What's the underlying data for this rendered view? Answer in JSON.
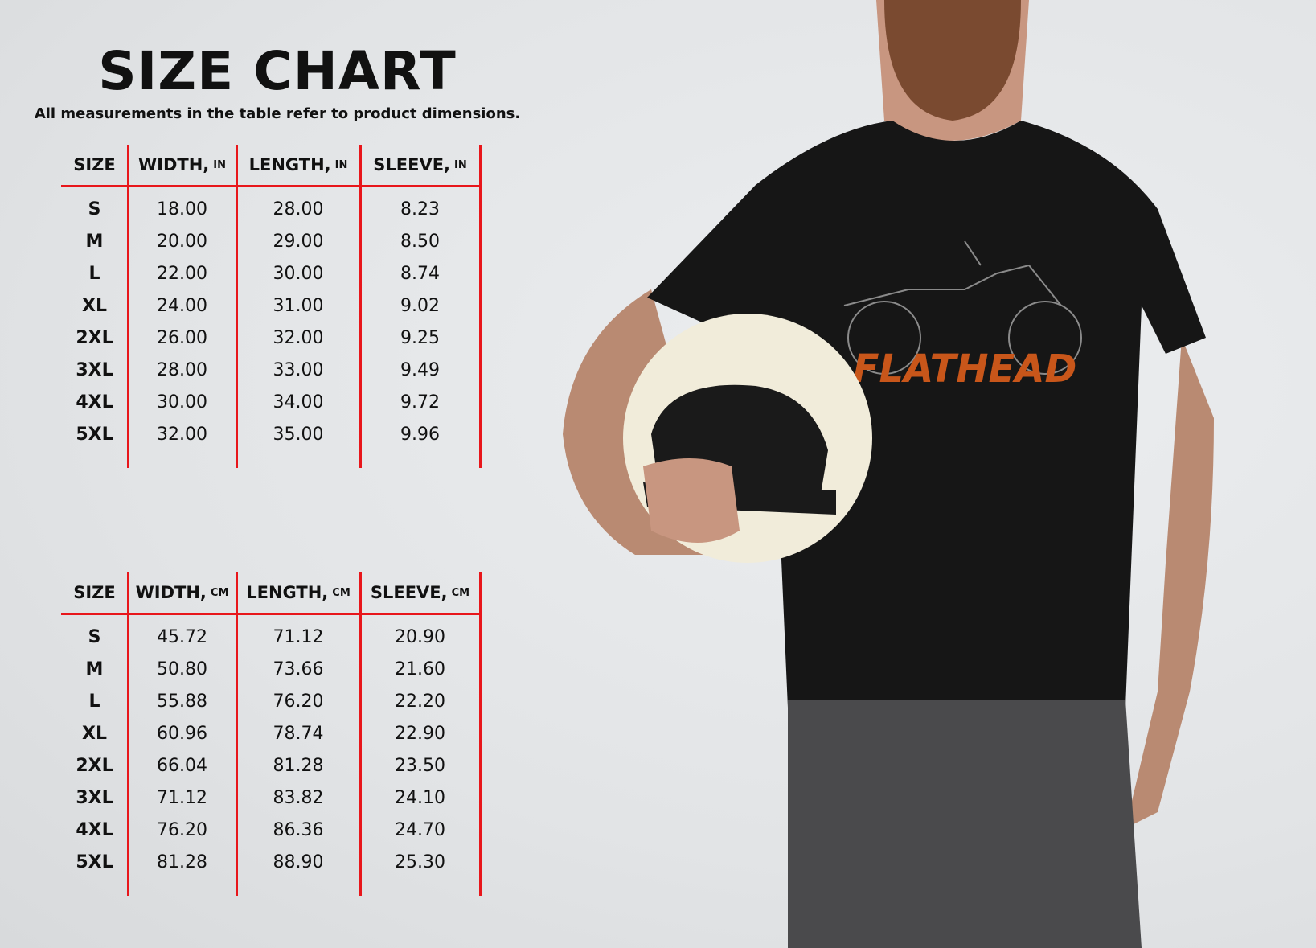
{
  "title": "SIZE CHART",
  "subtitle": "All measurements in the table refer to product dimensions.",
  "tables": [
    {
      "headers": [
        {
          "label": "SIZE",
          "unit": ""
        },
        {
          "label": "WIDTH,",
          "unit": "IN"
        },
        {
          "label": "LENGTH,",
          "unit": "IN"
        },
        {
          "label": "SLEEVE,",
          "unit": "IN"
        }
      ],
      "rows": [
        [
          "S",
          "18.00",
          "28.00",
          "8.23"
        ],
        [
          "M",
          "20.00",
          "29.00",
          "8.50"
        ],
        [
          "L",
          "22.00",
          "30.00",
          "8.74"
        ],
        [
          "XL",
          "24.00",
          "31.00",
          "9.02"
        ],
        [
          "2XL",
          "26.00",
          "32.00",
          "9.25"
        ],
        [
          "3XL",
          "28.00",
          "33.00",
          "9.49"
        ],
        [
          "4XL",
          "30.00",
          "34.00",
          "9.72"
        ],
        [
          "5XL",
          "32.00",
          "35.00",
          "9.96"
        ]
      ]
    },
    {
      "headers": [
        {
          "label": "SIZE",
          "unit": ""
        },
        {
          "label": "WIDTH,",
          "unit": "CM"
        },
        {
          "label": "LENGTH,",
          "unit": "CM"
        },
        {
          "label": "SLEEVE,",
          "unit": "CM"
        }
      ],
      "rows": [
        [
          "S",
          "45.72",
          "71.12",
          "20.90"
        ],
        [
          "M",
          "50.80",
          "73.66",
          "21.60"
        ],
        [
          "L",
          "55.88",
          "76.20",
          "22.20"
        ],
        [
          "XL",
          "60.96",
          "78.74",
          "22.90"
        ],
        [
          "2XL",
          "66.04",
          "81.28",
          "23.50"
        ],
        [
          "3XL",
          "71.12",
          "83.82",
          "24.10"
        ],
        [
          "4XL",
          "76.20",
          "86.36",
          "24.70"
        ],
        [
          "5XL",
          "81.28",
          "88.90",
          "25.30"
        ]
      ]
    }
  ],
  "shirt_print": "FLATHEAD",
  "colors": {
    "grid": "#e8161b",
    "print": "#c8561a",
    "shirt": "#161616"
  }
}
